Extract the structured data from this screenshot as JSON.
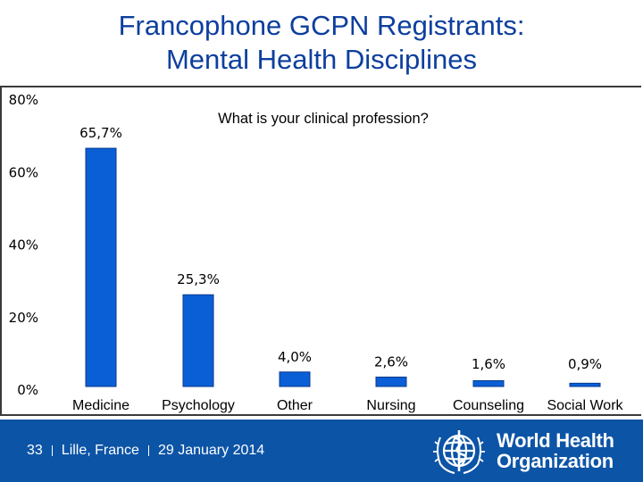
{
  "title": {
    "line1": "Francophone GCPN Registrants:",
    "line2": "Mental Health Disciplines"
  },
  "chart_data": {
    "type": "bar",
    "title": "What is your clinical profession?",
    "categories": [
      "Medicine",
      "Psychology",
      "Other",
      "Nursing",
      "Counseling",
      "Social Work"
    ],
    "values": [
      65.7,
      25.3,
      4.0,
      2.6,
      1.6,
      0.9
    ],
    "data_labels": [
      "65,7%",
      "25,3%",
      "4,0%",
      "2,6%",
      "1,6%",
      "0,9%"
    ],
    "y_ticks": [
      "0%",
      "20%",
      "40%",
      "60%",
      "80%"
    ],
    "y_tick_values": [
      0,
      20,
      40,
      60,
      80
    ],
    "ylim": [
      0,
      80
    ],
    "grid": false,
    "bar_color": "#0b5fd6",
    "xlabel": "",
    "ylabel": ""
  },
  "footer": {
    "slide_number": "33",
    "location": "Lille, France",
    "date": "29 January 2014",
    "org_line1": "World Health",
    "org_line2": "Organization",
    "background_color": "#0c54a6"
  }
}
